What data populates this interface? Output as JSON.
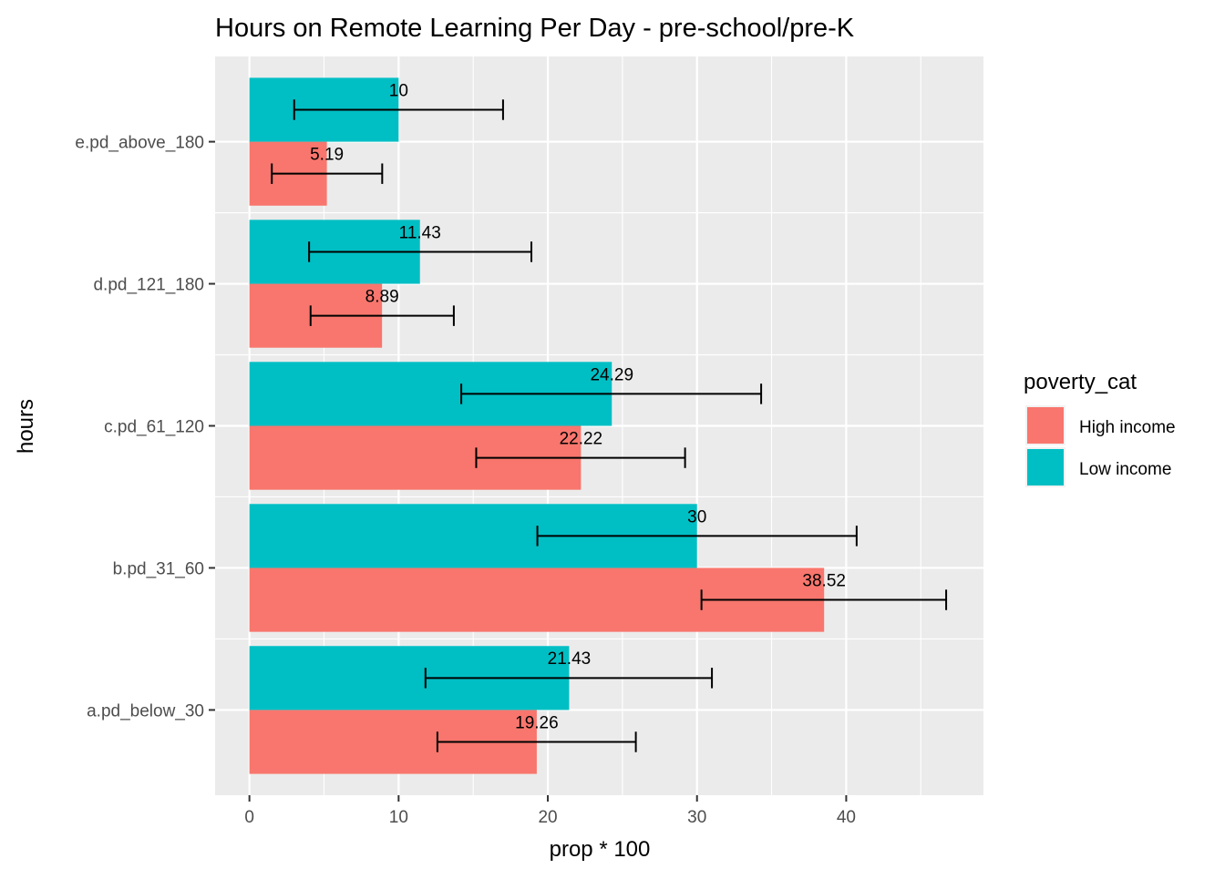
{
  "chart_data": {
    "type": "bar",
    "orientation": "horizontal",
    "title": "Hours on Remote Learning Per Day  - pre-school/pre-K",
    "xlabel": "prop * 100",
    "ylabel": "hours",
    "xlim": [
      -2.3,
      49.2
    ],
    "xticks": [
      0,
      10,
      20,
      30,
      40
    ],
    "grid": true,
    "categories": [
      "a.pd_below_30",
      "b.pd_31_60",
      "c.pd_61_120",
      "d.pd_121_180",
      "e.pd_above_180"
    ],
    "legend": {
      "title": "poverty_cat",
      "position": "right"
    },
    "series": [
      {
        "name": "High income",
        "color": "#F8766D",
        "values": [
          19.26,
          38.52,
          22.22,
          8.89,
          5.19
        ],
        "labels": [
          "19.26",
          "38.52",
          "22.22",
          "8.89",
          "5.19"
        ],
        "error_low": [
          12.6,
          30.3,
          15.2,
          4.1,
          1.5
        ],
        "error_high": [
          25.9,
          46.7,
          29.2,
          13.7,
          8.9
        ]
      },
      {
        "name": "Low income",
        "color": "#00BFC4",
        "values": [
          21.43,
          30,
          24.29,
          11.43,
          10
        ],
        "labels": [
          "21.43",
          "30",
          "24.29",
          "11.43",
          "10"
        ],
        "error_low": [
          11.8,
          19.3,
          14.2,
          4.0,
          3.0
        ],
        "error_high": [
          31.0,
          40.7,
          34.3,
          18.9,
          17.0
        ]
      }
    ]
  }
}
